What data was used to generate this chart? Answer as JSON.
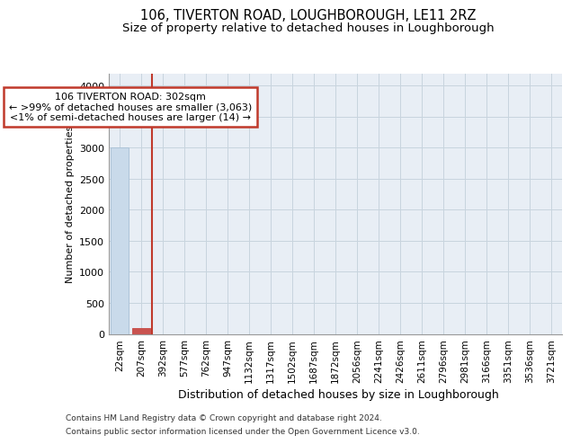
{
  "title": "106, TIVERTON ROAD, LOUGHBOROUGH, LE11 2RZ",
  "subtitle": "Size of property relative to detached houses in Loughborough",
  "xlabel": "Distribution of detached houses by size in Loughborough",
  "ylabel": "Number of detached properties",
  "footer_line1": "Contains HM Land Registry data © Crown copyright and database right 2024.",
  "footer_line2": "Contains public sector information licensed under the Open Government Licence v3.0.",
  "categories": [
    "22sqm",
    "207sqm",
    "392sqm",
    "577sqm",
    "762sqm",
    "947sqm",
    "1132sqm",
    "1317sqm",
    "1502sqm",
    "1687sqm",
    "1872sqm",
    "2056sqm",
    "2241sqm",
    "2426sqm",
    "2611sqm",
    "2796sqm",
    "2981sqm",
    "3166sqm",
    "3351sqm",
    "3536sqm",
    "3721sqm"
  ],
  "bar_heights": [
    3000,
    100,
    0,
    0,
    0,
    0,
    0,
    0,
    0,
    0,
    0,
    0,
    0,
    0,
    0,
    0,
    0,
    0,
    0,
    0,
    0
  ],
  "highlighted_bar_index": 1,
  "normal_bar_color": "#c9daea",
  "highlighted_bar_color": "#c9534f",
  "highlighted_bar_edge_color": "#c9534f",
  "normal_bar_edge_color": "#adc4d8",
  "property_line_x": 1.5,
  "annotation_title": "106 TIVERTON ROAD: 302sqm",
  "annotation_line1": "← >99% of detached houses are smaller (3,063)",
  "annotation_line2": "<1% of semi-detached houses are larger (14) →",
  "annotation_box_color": "#ffffff",
  "annotation_border_color": "#c0392b",
  "ylim": [
    0,
    4200
  ],
  "yticks": [
    0,
    500,
    1000,
    1500,
    2000,
    2500,
    3000,
    3500,
    4000
  ],
  "grid_color": "#c8d4de",
  "bg_color": "#e8eef5",
  "title_fontsize": 10.5,
  "subtitle_fontsize": 9.5
}
